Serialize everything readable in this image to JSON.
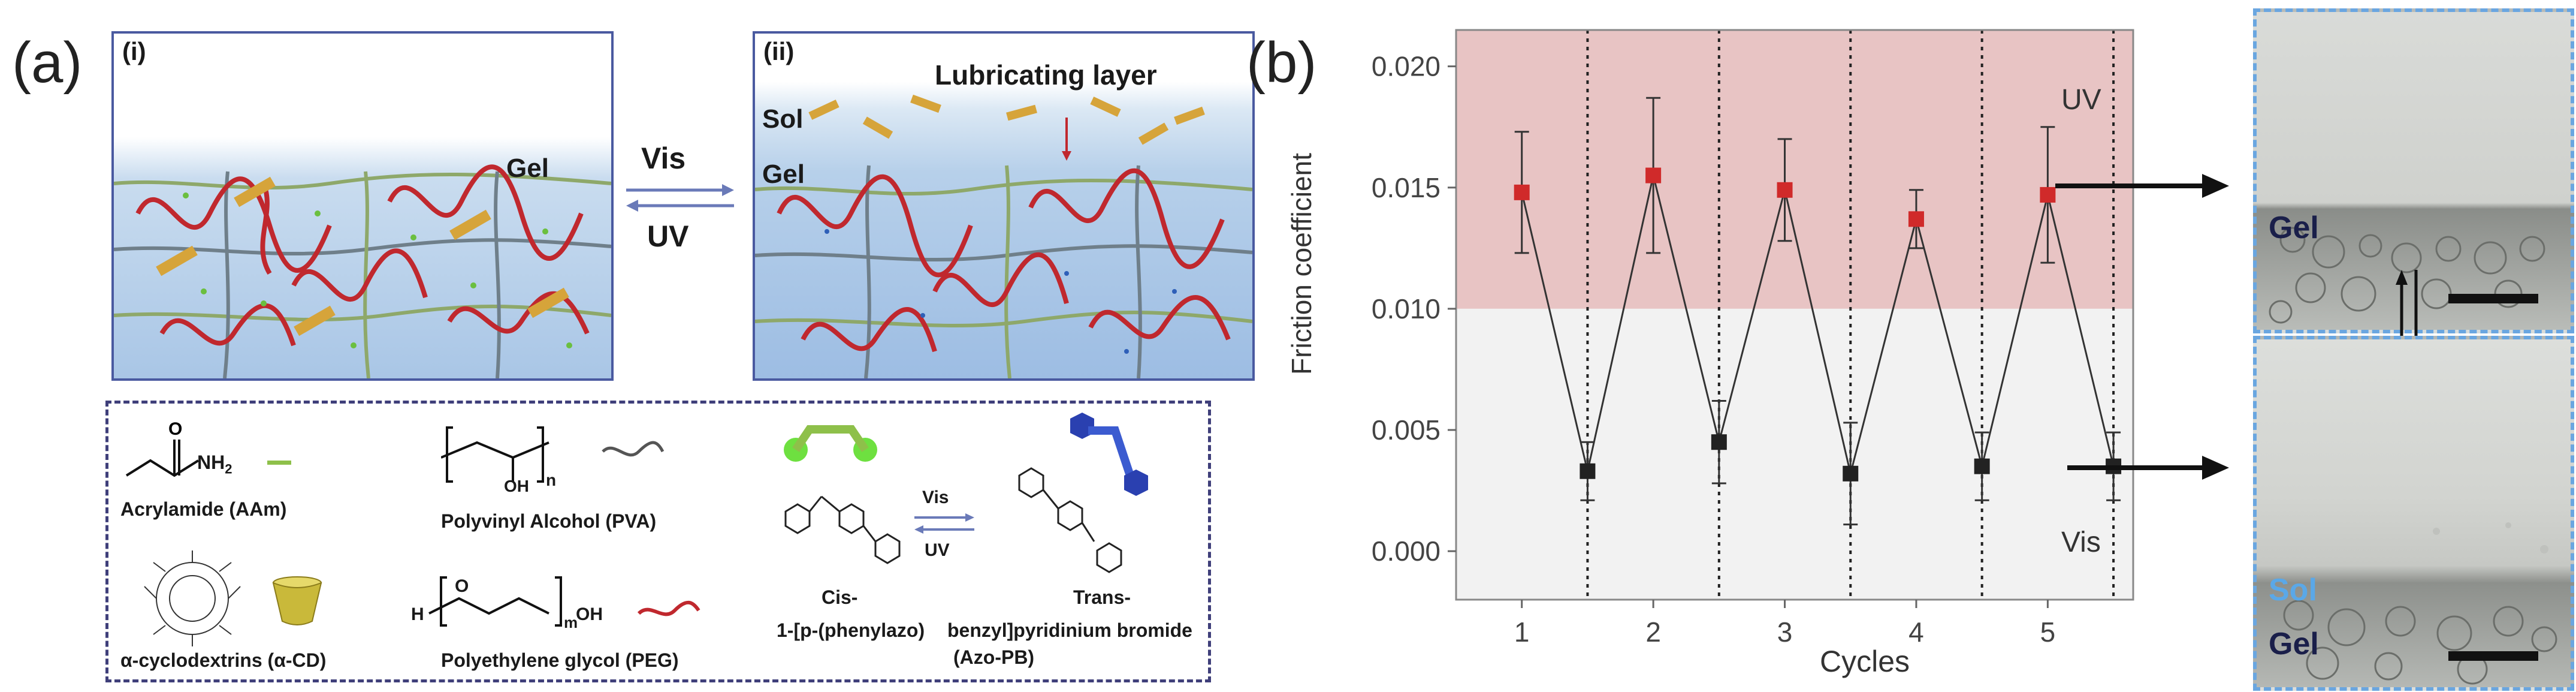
{
  "panel_a": {
    "letter": "(a)",
    "state_i": {
      "tag": "(i)",
      "gel_label": "Gel"
    },
    "state_ii": {
      "tag": "(ii)",
      "lubricating_label": "Lubricating layer",
      "sol_label": "Sol",
      "gel_label": "Gel"
    },
    "arrow_top": "Vis",
    "arrow_bottom": "UV",
    "legend": {
      "acrylamide": "Acrylamide (AAm)",
      "nh2": "NH",
      "nh2_sub": "2",
      "pva": "Polyvinyl Alcohol (PVA)",
      "pva_oh": "OH",
      "pva_n": "n",
      "cd": "α-cyclodextrins (α-CD)",
      "peg": "Polyethylene glycol (PEG)",
      "peg_h": "H",
      "peg_o": "O",
      "peg_m": "m",
      "peg_oh": "OH",
      "azo_vis": "Vis",
      "azo_uv": "UV",
      "cis": "Cis-",
      "trans": "Trans-",
      "azo_name_left": "1-[p-(phenylazo)",
      "azo_name_right": "benzyl]pyridinium  bromide",
      "azo_abbrev": "(Azo-PB)"
    }
  },
  "panel_b": {
    "letter": "(b)",
    "uv_region_label": "UV",
    "vis_region_label": "Vis",
    "micro_top": {
      "gel_label": "Gel"
    },
    "micro_bottom": {
      "sol_label": "Sol",
      "gel_label": "Gel"
    }
  },
  "chart_data": {
    "type": "line",
    "title": "",
    "xlabel": "Cycles",
    "ylabel": "Friction coefficient",
    "ylim": [
      -0.002,
      0.0215
    ],
    "yticks": [
      "0.000",
      "0.005",
      "0.010",
      "0.015",
      "0.020"
    ],
    "ytick_values": [
      0.0,
      0.005,
      0.01,
      0.015,
      0.02
    ],
    "xticks": [
      "1",
      "2",
      "3",
      "4",
      "5"
    ],
    "grid": false,
    "uv_band": [
      0.01,
      0.0215
    ],
    "uv_color": "#e8c4c4",
    "vis_color": "#f2f2f2",
    "series": [
      {
        "marker_colors": [
          "#d02a2a",
          "#222222"
        ],
        "x": [
          1,
          1.5,
          2,
          2.5,
          3,
          3.5,
          4,
          4.5,
          5,
          5.5
        ],
        "y": [
          0.0148,
          0.0033,
          0.0155,
          0.0045,
          0.0149,
          0.0032,
          0.0137,
          0.0035,
          0.0147,
          0.0035
        ],
        "err": [
          0.0025,
          0.0012,
          0.0032,
          0.0017,
          0.0021,
          0.0021,
          0.0012,
          0.0014,
          0.0028,
          0.0014
        ],
        "state": [
          "UV",
          "Vis",
          "UV",
          "Vis",
          "UV",
          "Vis",
          "UV",
          "Vis",
          "UV",
          "Vis"
        ]
      }
    ],
    "cycle_dividers": [
      1.5,
      2.5,
      3.5,
      4.5,
      5.5
    ]
  },
  "colors": {
    "box_border": "#4a5aa0",
    "legend_border": "#3f3f7a",
    "micro_border": "#6aa6e0",
    "red_chain": "#c0282e",
    "green_chain": "#6bbf3f",
    "dark_label": "#1a1f4a",
    "sol_blue": "#5aa8e8"
  }
}
